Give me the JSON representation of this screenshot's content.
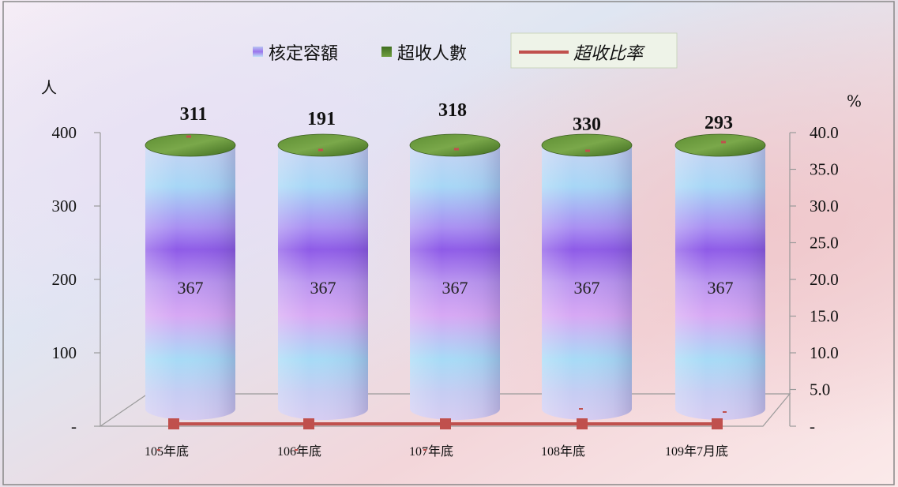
{
  "chart_data": {
    "type": "bar",
    "categories": [
      "105年底",
      "106年底",
      "107年底",
      "108年底",
      "109年7月底"
    ],
    "series": [
      {
        "name": "核定容額",
        "values": [
          367,
          367,
          367,
          367,
          367
        ],
        "color": "#a68cf0"
      },
      {
        "name": "超收人數",
        "values": [
          311,
          191,
          318,
          330,
          293
        ],
        "color": "#4a7a2a"
      },
      {
        "name": "超收比率",
        "values": [
          0,
          0,
          0,
          0,
          0
        ],
        "axis": "right",
        "color": "#c0504d"
      }
    ],
    "left_axis": {
      "label": "人",
      "ticks": [
        "-",
        "100",
        "200",
        "300",
        "400"
      ],
      "range": [
        0,
        400
      ]
    },
    "right_axis": {
      "label": "%",
      "ticks": [
        "-",
        "5.0",
        "10.0",
        "15.0",
        "20.0",
        "25.0",
        "30.0",
        "35.0",
        "40.0"
      ],
      "range": [
        0,
        40
      ]
    },
    "legend": {
      "placement": "top",
      "entries": [
        "核定容額",
        "超收人數",
        "超收比率"
      ]
    },
    "grid": false
  },
  "colors": {
    "capacity_bar": "#a68cf0",
    "overflow_top": "#4a7a2a",
    "ratio_line": "#c0504d"
  }
}
